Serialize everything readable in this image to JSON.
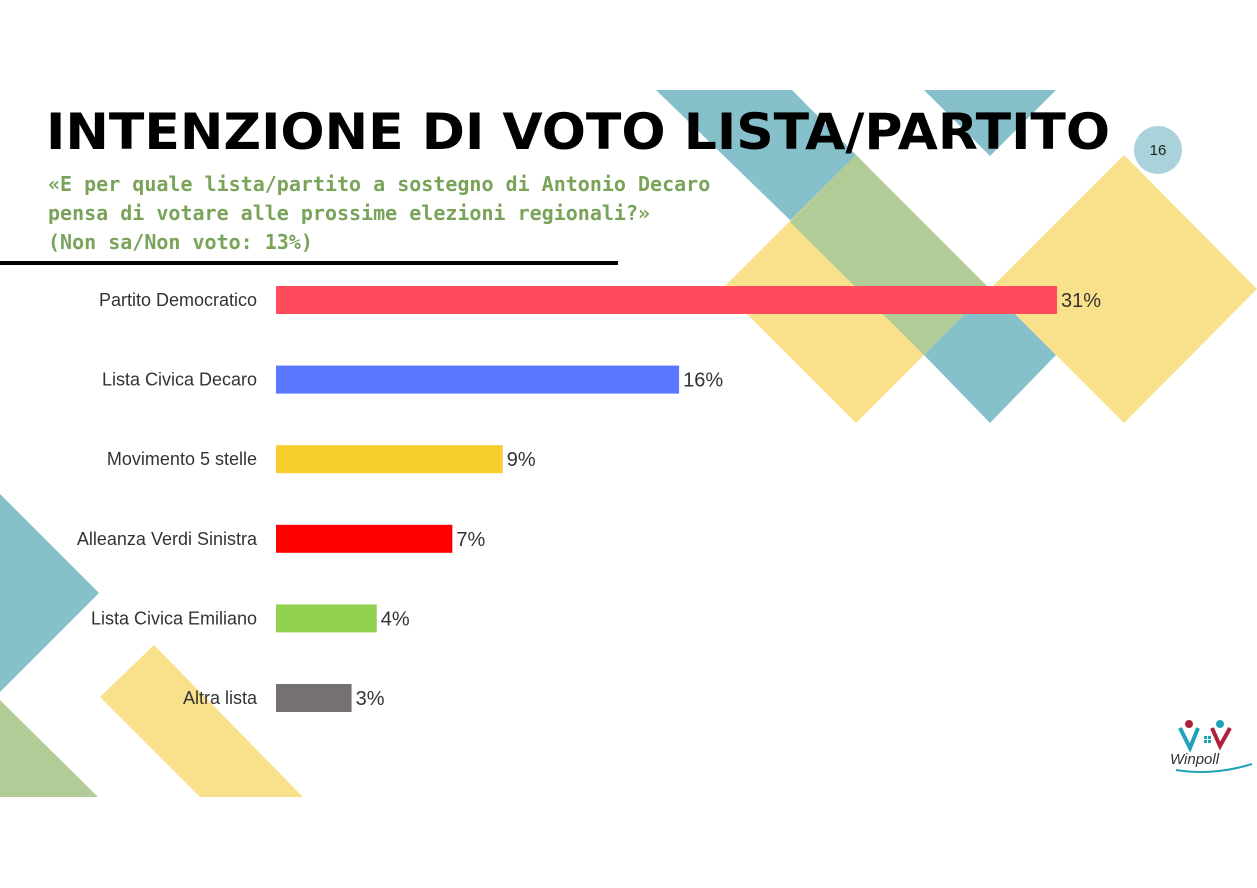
{
  "slide": {
    "title": "INTENZIONE DI VOTO LISTA/PARTITO",
    "subtitle_lines": [
      "«E per quale lista/partito a sostegno di Antonio Decaro",
      "pensa di votare alle prossime elezioni regionali?»",
      "(Non sa/Non voto: 13%)"
    ],
    "page_number": "16",
    "logo_text": "Winpoll"
  },
  "colors": {
    "deco_teal": "#86c0cb",
    "deco_yellow": "#f9e08a",
    "deco_green": "#b2cc98",
    "subtitle_green": "#7aa35a"
  },
  "chart_data": {
    "type": "bar",
    "orientation": "horizontal",
    "categories": [
      "Partito Democratico",
      "Lista Civica Decaro",
      "Movimento 5 stelle",
      "Alleanza Verdi Sinistra",
      "Lista Civica Emiliano",
      "Altra lista"
    ],
    "values": [
      31,
      16,
      9,
      7,
      4,
      3
    ],
    "value_labels": [
      "31%",
      "16%",
      "9%",
      "7%",
      "4%",
      "3%"
    ],
    "colors": [
      "#ff4b5c",
      "#5b76ff",
      "#f6cd2c",
      "#ff0000",
      "#92d050",
      "#767171"
    ],
    "xlim": [
      0,
      31
    ],
    "grid": false,
    "legend": "none"
  }
}
